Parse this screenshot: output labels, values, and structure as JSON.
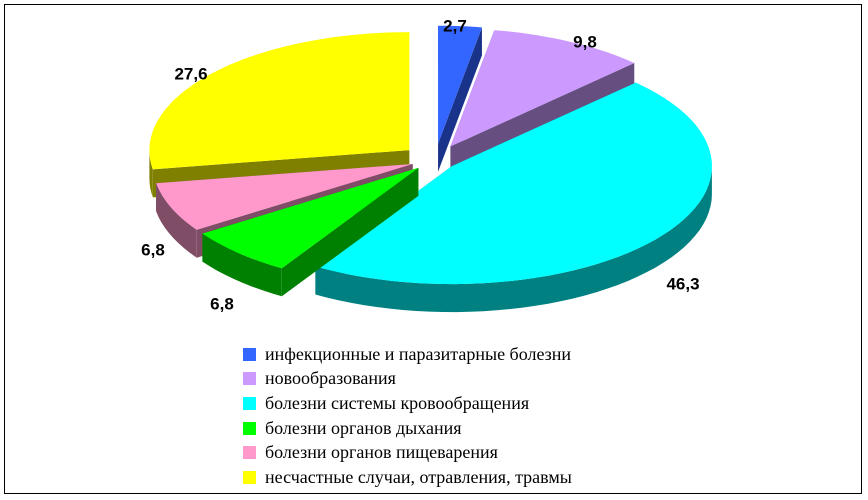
{
  "chart_data": {
    "type": "pie",
    "title": "",
    "legend_position": "bottom",
    "categories": [
      "инфекционные и паразитарные болезни",
      "новообразования",
      "болезни системы кровообращения",
      "болезни органов дыхания",
      "болезни органов пищеварения",
      "несчастные случаи, отравления, травмы"
    ],
    "values": [
      2.7,
      9.8,
      46.3,
      6.8,
      6.8,
      27.6
    ],
    "value_labels": [
      "2,7",
      "9,8",
      "46,3",
      "6,8",
      "6,8",
      "27,6"
    ],
    "colors": [
      "#3366ff",
      "#cc99ff",
      "#00ffff",
      "#00ff00",
      "#ff99cc",
      "#ffff00"
    ],
    "side_colors": [
      "#1a338a",
      "#664f80",
      "#008080",
      "#008000",
      "#804d66",
      "#808000"
    ],
    "exploded": true,
    "three_d": true
  }
}
